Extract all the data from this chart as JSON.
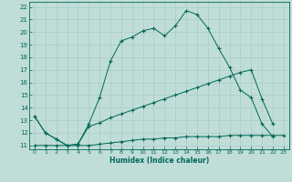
{
  "xlabel": "Humidex (Indice chaleur)",
  "bg_color": "#c0ddd8",
  "grid_color": "#a8ccc8",
  "line_color": "#006858",
  "xlim": [
    -0.5,
    23.5
  ],
  "ylim": [
    10.7,
    22.4
  ],
  "xticks": [
    0,
    1,
    2,
    3,
    4,
    5,
    6,
    7,
    8,
    9,
    10,
    11,
    12,
    13,
    14,
    15,
    16,
    17,
    18,
    19,
    20,
    21,
    22,
    23
  ],
  "yticks": [
    11,
    12,
    13,
    14,
    15,
    16,
    17,
    18,
    19,
    20,
    21,
    22
  ],
  "line1_x": [
    0,
    1,
    2,
    3,
    4,
    5,
    6,
    7,
    8,
    9,
    10,
    11,
    12,
    13,
    14,
    15,
    16,
    17,
    18,
    19,
    20,
    21,
    22
  ],
  "line1_y": [
    13.3,
    12.0,
    11.5,
    11.0,
    11.1,
    12.7,
    14.8,
    17.7,
    19.3,
    19.6,
    20.1,
    20.3,
    19.7,
    20.5,
    21.7,
    21.4,
    20.3,
    18.7,
    17.2,
    15.4,
    14.8,
    12.7,
    11.7
  ],
  "line2_x": [
    0,
    1,
    2,
    3,
    4,
    5,
    6,
    7,
    8,
    9,
    10,
    11,
    12,
    13,
    14,
    15,
    16,
    17,
    18,
    19,
    20,
    21,
    22
  ],
  "line2_y": [
    13.3,
    12.0,
    11.5,
    11.0,
    11.1,
    12.5,
    12.8,
    13.2,
    13.5,
    13.8,
    14.1,
    14.4,
    14.7,
    15.0,
    15.3,
    15.6,
    15.9,
    16.2,
    16.5,
    16.8,
    17.0,
    14.7,
    12.7
  ],
  "line3_x": [
    0,
    1,
    2,
    3,
    4,
    5,
    6,
    7,
    8,
    9,
    10,
    11,
    12,
    13,
    14,
    15,
    16,
    17,
    18,
    19,
    20,
    21,
    22,
    23
  ],
  "line3_y": [
    11.0,
    11.0,
    11.0,
    11.0,
    11.0,
    11.0,
    11.1,
    11.2,
    11.3,
    11.4,
    11.5,
    11.5,
    11.6,
    11.6,
    11.7,
    11.7,
    11.7,
    11.7,
    11.8,
    11.8,
    11.8,
    11.8,
    11.8,
    11.8
  ]
}
